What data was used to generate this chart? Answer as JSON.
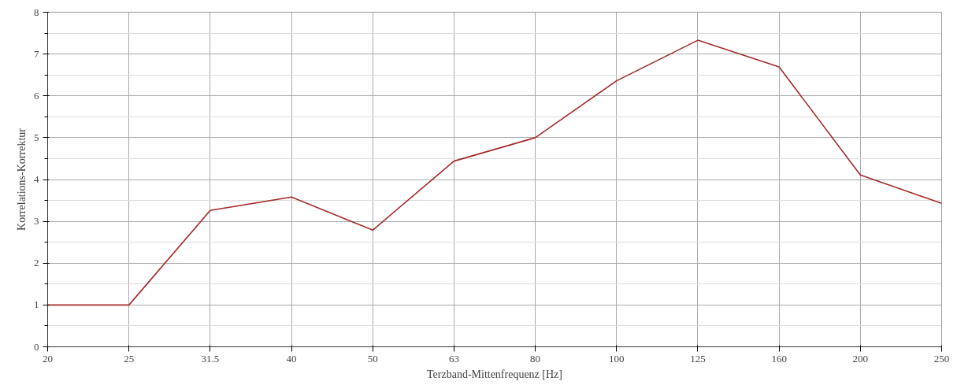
{
  "chart_data": {
    "type": "line",
    "xlabel": "Terzband-Mittenfrequenz [Hz]",
    "ylabel": "Korrelations-Korrektur",
    "categories": [
      "20",
      "25",
      "31.5",
      "40",
      "50",
      "63",
      "80",
      "100",
      "125",
      "160",
      "200",
      "250"
    ],
    "series": [
      {
        "color": "#a52a2a",
        "values": [
          1,
          1,
          3.26,
          3.58,
          2.79,
          4.44,
          5.0,
          6.36,
          7.33,
          6.69,
          4.11,
          3.43
        ]
      }
    ],
    "ylim": [
      0,
      8
    ],
    "yticks": [
      0,
      1,
      2,
      3,
      4,
      5,
      6,
      7,
      8
    ],
    "grid": true,
    "marker": "none",
    "line_style": "solid"
  }
}
